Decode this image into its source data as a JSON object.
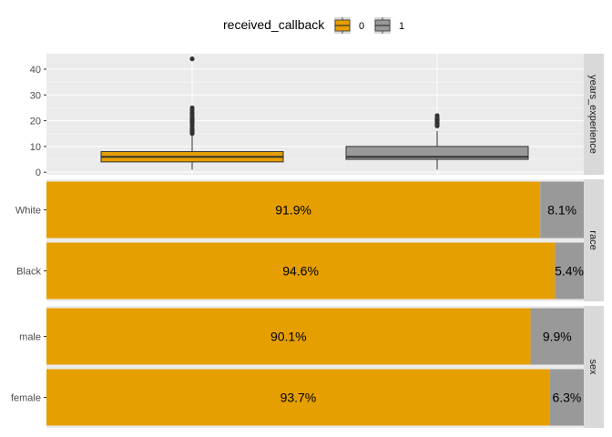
{
  "colors": {
    "group0": "#E69F00",
    "group1": "#999999",
    "panel_bg": "#EBEBEB",
    "strip_bg": "#D9D9D9",
    "grid_major": "#FFFFFF"
  },
  "legend": {
    "title": "received_callback",
    "items": [
      {
        "label": "0",
        "color": "#E69F00"
      },
      {
        "label": "1",
        "color": "#999999"
      }
    ]
  },
  "chart_data": [
    {
      "type": "box",
      "facet": "years_experience",
      "groups": [
        "0",
        "1"
      ],
      "ylim": [
        -1,
        46
      ],
      "yticks": [
        0,
        10,
        20,
        30,
        40
      ],
      "boxes": [
        {
          "group": "0",
          "min": 1,
          "q1": 4,
          "median": 6,
          "q3": 8,
          "max": 14,
          "outliers": [
            15,
            15.5,
            16,
            16.5,
            17,
            18,
            19,
            19.5,
            20,
            20.5,
            21,
            22,
            23,
            24,
            25,
            44
          ]
        },
        {
          "group": "1",
          "min": 1,
          "q1": 5,
          "median": 6,
          "q3": 10,
          "max": 16,
          "outliers": [
            18,
            18.5,
            19,
            19.5,
            20,
            20.5,
            21,
            22
          ]
        }
      ]
    },
    {
      "type": "bar",
      "facet": "race",
      "stacked": true,
      "rows": [
        {
          "category": "White",
          "values": [
            91.9,
            8.1
          ],
          "labels": [
            "91.9%",
            "8.1%"
          ]
        },
        {
          "category": "Black",
          "values": [
            94.6,
            5.4
          ],
          "labels": [
            "94.6%",
            "5.4%"
          ]
        }
      ]
    },
    {
      "type": "bar",
      "facet": "sex",
      "stacked": true,
      "rows": [
        {
          "category": "male",
          "values": [
            90.1,
            9.9
          ],
          "labels": [
            "90.1%",
            "9.9%"
          ]
        },
        {
          "category": "female",
          "values": [
            93.7,
            6.3
          ],
          "labels": [
            "93.7%",
            "6.3%"
          ]
        }
      ]
    }
  ]
}
